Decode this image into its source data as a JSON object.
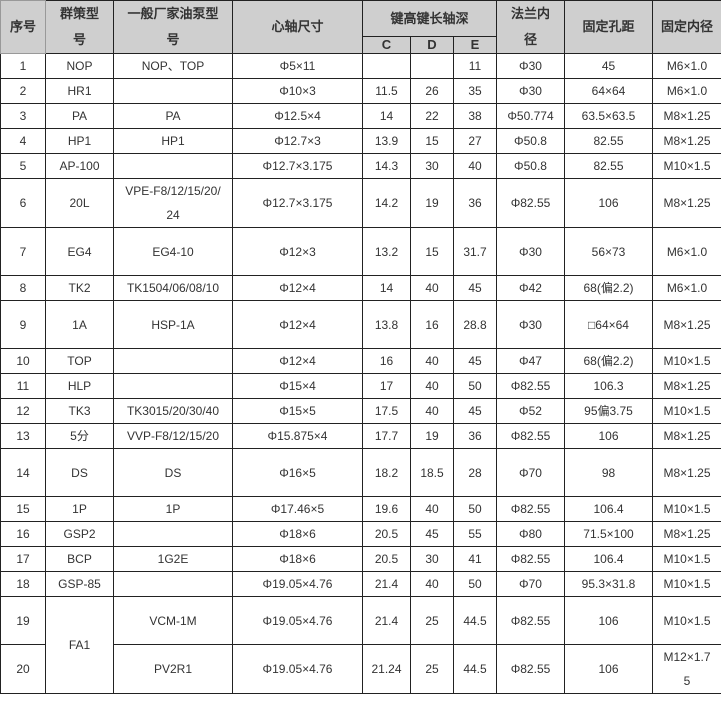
{
  "headers": {
    "index": "序号",
    "model": "群策型号",
    "generic_model": "一般厂家油泵型号",
    "shaft_size": "心轴尺寸",
    "key_group": "键高键长轴深",
    "c": "C",
    "d": "D",
    "e": "E",
    "flange": "法兰内径",
    "hole_pitch": "固定孔距",
    "fix_thread": "固定内径"
  },
  "rows": [
    {
      "no": "1",
      "model": "NOP",
      "generic": "NOP、TOP",
      "shaft": "Φ5×11",
      "c": "",
      "d": "",
      "e": "11",
      "flange": "Φ30",
      "pitch": "45",
      "thread": "M6×1.0"
    },
    {
      "no": "2",
      "model": "HR1",
      "generic": "",
      "shaft": "Φ10×3",
      "c": "11.5",
      "d": "26",
      "e": "35",
      "flange": "Φ30",
      "pitch": "64×64",
      "thread": "M6×1.0"
    },
    {
      "no": "3",
      "model": "PA",
      "generic": "PA",
      "shaft": "Φ12.5×4",
      "c": "14",
      "d": "22",
      "e": "38",
      "flange": "Φ50.774",
      "pitch": "63.5×63.5",
      "thread": "M8×1.25"
    },
    {
      "no": "4",
      "model": "HP1",
      "generic": "HP1",
      "shaft": "Φ12.7×3",
      "c": "13.9",
      "d": "15",
      "e": "27",
      "flange": "Φ50.8",
      "pitch": "82.55",
      "thread": "M8×1.25"
    },
    {
      "no": "5",
      "model": "AP-100",
      "generic": "",
      "shaft": "Φ12.7×3.175",
      "c": "14.3",
      "d": "30",
      "e": "40",
      "flange": "Φ50.8",
      "pitch": "82.55",
      "thread": "M10×1.5"
    },
    {
      "no": "6",
      "model": "20L",
      "generic": "VPE-F8/12/15/20/24",
      "shaft": "Φ12.7×3.175",
      "c": "14.2",
      "d": "19",
      "e": "36",
      "flange": "Φ82.55",
      "pitch": "106",
      "thread": "M8×1.25"
    },
    {
      "no": "7",
      "model": "EG4",
      "generic": "EG4-10",
      "shaft": "Φ12×3",
      "c": "13.2",
      "d": "15",
      "e": "31.7",
      "flange": "Φ30",
      "pitch": "56×73",
      "thread": "M6×1.0"
    },
    {
      "no": "8",
      "model": "TK2",
      "generic": "TK1504/06/08/10",
      "shaft": "Φ12×4",
      "c": "14",
      "d": "40",
      "e": "45",
      "flange": "Φ42",
      "pitch": "68(偏2.2)",
      "thread": "M6×1.0"
    },
    {
      "no": "9",
      "model": "1A",
      "generic": "HSP-1A",
      "shaft": "Φ12×4",
      "c": "13.8",
      "d": "16",
      "e": "28.8",
      "flange": "Φ30",
      "pitch": "□64×64",
      "thread": "M8×1.25"
    },
    {
      "no": "10",
      "model": "TOP",
      "generic": "",
      "shaft": "Φ12×4",
      "c": "16",
      "d": "40",
      "e": "45",
      "flange": "Φ47",
      "pitch": "68(偏2.2)",
      "thread": "M10×1.5"
    },
    {
      "no": "11",
      "model": "HLP",
      "generic": "",
      "shaft": "Φ15×4",
      "c": "17",
      "d": "40",
      "e": "50",
      "flange": "Φ82.55",
      "pitch": "106.3",
      "thread": "M8×1.25"
    },
    {
      "no": "12",
      "model": "TK3",
      "generic": "TK3015/20/30/40",
      "shaft": "Φ15×5",
      "c": "17.5",
      "d": "40",
      "e": "45",
      "flange": "Φ52",
      "pitch": "95偏3.75",
      "thread": "M10×1.5"
    },
    {
      "no": "13",
      "model": "5分",
      "generic": "VVP-F8/12/15/20",
      "shaft": "Φ15.875×4",
      "c": "17.7",
      "d": "19",
      "e": "36",
      "flange": "Φ82.55",
      "pitch": "106",
      "thread": "M8×1.25"
    },
    {
      "no": "14",
      "model": "DS",
      "generic": "DS",
      "shaft": "Φ16×5",
      "c": "18.2",
      "d": "18.5",
      "e": "28",
      "flange": "Φ70",
      "pitch": "98",
      "thread": "M8×1.25"
    },
    {
      "no": "15",
      "model": "1P",
      "generic": "1P",
      "shaft": "Φ17.46×5",
      "c": "19.6",
      "d": "40",
      "e": "50",
      "flange": "Φ82.55",
      "pitch": "106.4",
      "thread": "M10×1.5"
    },
    {
      "no": "16",
      "model": "GSP2",
      "generic": "",
      "shaft": "Φ18×6",
      "c": "20.5",
      "d": "45",
      "e": "55",
      "flange": "Φ80",
      "pitch": "71.5×100",
      "thread": "M8×1.25"
    },
    {
      "no": "17",
      "model": "BCP",
      "generic": "1G2E",
      "shaft": "Φ18×6",
      "c": "20.5",
      "d": "30",
      "e": "41",
      "flange": "Φ82.55",
      "pitch": "106.4",
      "thread": "M10×1.5"
    },
    {
      "no": "18",
      "model": "GSP-85",
      "generic": "",
      "shaft": "Φ19.05×4.76",
      "c": "21.4",
      "d": "40",
      "e": "50",
      "flange": "Φ70",
      "pitch": "95.3×31.8",
      "thread": "M10×1.5"
    },
    {
      "no": "19",
      "model": "FA1",
      "generic": "VCM-1M",
      "shaft": "Φ19.05×4.76",
      "c": "21.4",
      "d": "25",
      "e": "44.5",
      "flange": "Φ82.55",
      "pitch": "106",
      "thread": "M10×1.5"
    },
    {
      "no": "20",
      "model": null,
      "generic": "PV2R1",
      "shaft": "Φ19.05×4.76",
      "c": "21.24",
      "d": "25",
      "e": "44.5",
      "flange": "Φ82.55",
      "pitch": "106",
      "thread": "M12×1.75"
    }
  ]
}
